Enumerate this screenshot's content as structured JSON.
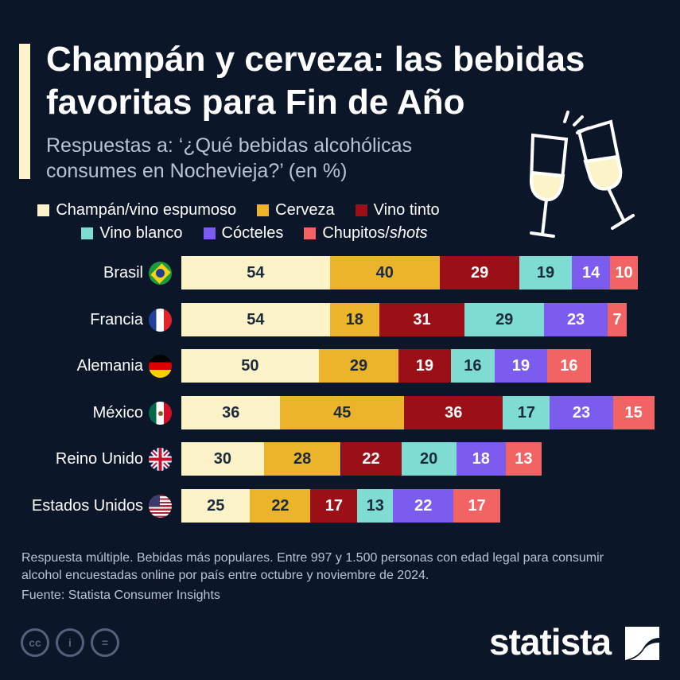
{
  "title": "Champán y cerveza: las bebidas favoritas para Fin de Año",
  "subtitle": "Respuestas a: ‘¿Qué bebidas alcohólicas consumes en Nochevieja?’ (en %)",
  "note": "Respuesta múltiple. Bebidas más populares. Entre 997 y 1.500 personas con edad legal para consumir alcohol encuestadas online por país entre octubre y noviembre de 2024.",
  "source": "Fuente: Statista Consumer Insights",
  "logo": "statista",
  "license_icons": [
    "cc-icon",
    "attribution-icon",
    "no-derivatives-icon"
  ],
  "chart_data": {
    "type": "bar",
    "orientation": "horizontal-stacked",
    "categories": [
      "Brasil",
      "Francia",
      "Alemania",
      "México",
      "Reino Unido",
      "Estados Unidos"
    ],
    "flags": [
      "brazil-flag-icon",
      "france-flag-icon",
      "germany-flag-icon",
      "mexico-flag-icon",
      "uk-flag-icon",
      "usa-flag-icon"
    ],
    "legend_placement": "top",
    "grid": false,
    "series": [
      {
        "name": "Champán/vino espumoso",
        "color": "#fdf3c8",
        "label_color": "#1b2a3d",
        "values": [
          54,
          54,
          50,
          36,
          30,
          25
        ]
      },
      {
        "name": "Cerveza",
        "color": "#ebb42b",
        "label_color": "#1b2a3d",
        "values": [
          40,
          18,
          29,
          45,
          28,
          22
        ]
      },
      {
        "name": "Vino tinto",
        "color": "#9b0f16",
        "label_color": "#ffffff",
        "values": [
          29,
          31,
          19,
          36,
          22,
          17
        ]
      },
      {
        "name": "Vino blanco",
        "color": "#7edcd3",
        "label_color": "#1b2a3d",
        "values": [
          19,
          29,
          16,
          17,
          20,
          13
        ]
      },
      {
        "name": "Cócteles",
        "color": "#7b5cef",
        "label_color": "#ffffff",
        "values": [
          14,
          23,
          19,
          23,
          18,
          22
        ]
      },
      {
        "name": "Chupitos/shots",
        "color": "#f26464",
        "label_color": "#ffffff",
        "values": [
          10,
          7,
          16,
          15,
          13,
          17
        ]
      }
    ]
  }
}
